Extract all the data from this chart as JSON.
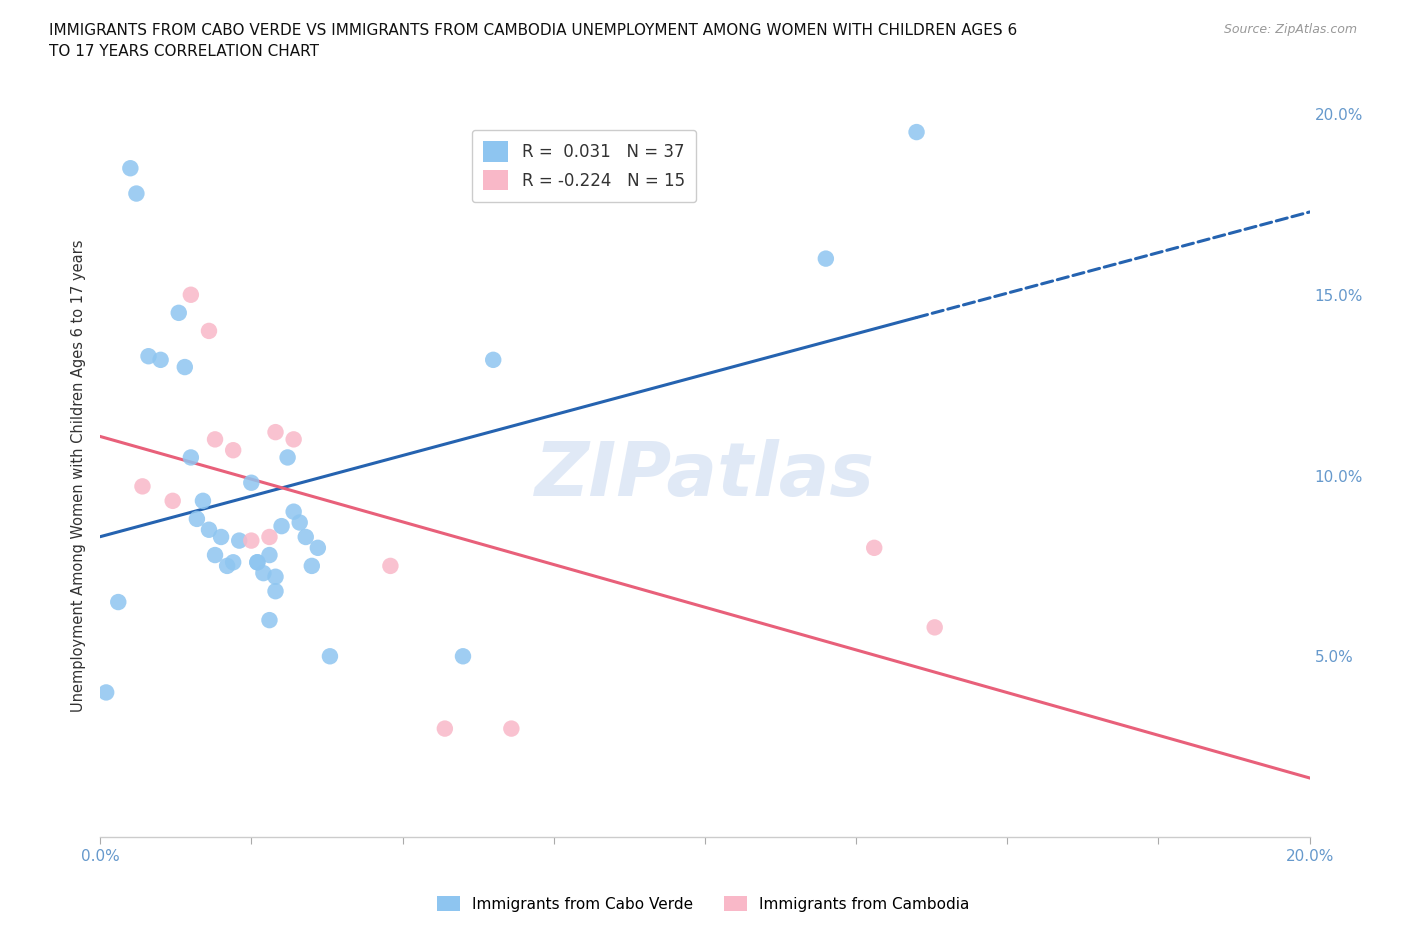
{
  "title": "IMMIGRANTS FROM CABO VERDE VS IMMIGRANTS FROM CAMBODIA UNEMPLOYMENT AMONG WOMEN WITH CHILDREN AGES 6\nTO 17 YEARS CORRELATION CHART",
  "source": "Source: ZipAtlas.com",
  "ylabel": "Unemployment Among Women with Children Ages 6 to 17 years",
  "xlim": [
    0.0,
    0.2
  ],
  "ylim": [
    0.0,
    0.2
  ],
  "xtick_positions": [
    0.0,
    0.025,
    0.05,
    0.075,
    0.1,
    0.125,
    0.15,
    0.175,
    0.2
  ],
  "xticklabels_show": {
    "0.0": "0.0%",
    "0.20": "20.0%"
  },
  "ytick_positions": [
    0.05,
    0.1,
    0.15,
    0.2
  ],
  "yticklabels": [
    "5.0%",
    "10.0%",
    "15.0%",
    "20.0%"
  ],
  "cabo_verde_x": [
    0.005,
    0.006,
    0.008,
    0.01,
    0.013,
    0.014,
    0.015,
    0.016,
    0.017,
    0.018,
    0.019,
    0.02,
    0.021,
    0.022,
    0.023,
    0.025,
    0.026,
    0.026,
    0.027,
    0.028,
    0.028,
    0.029,
    0.029,
    0.03,
    0.031,
    0.032,
    0.033,
    0.034,
    0.035,
    0.036,
    0.038,
    0.06,
    0.065,
    0.12,
    0.135,
    0.001,
    0.003
  ],
  "cabo_verde_y": [
    0.185,
    0.178,
    0.133,
    0.132,
    0.145,
    0.13,
    0.105,
    0.088,
    0.093,
    0.085,
    0.078,
    0.083,
    0.075,
    0.076,
    0.082,
    0.098,
    0.076,
    0.076,
    0.073,
    0.06,
    0.078,
    0.068,
    0.072,
    0.086,
    0.105,
    0.09,
    0.087,
    0.083,
    0.075,
    0.08,
    0.05,
    0.05,
    0.132,
    0.16,
    0.195,
    0.04,
    0.065
  ],
  "cambodia_x": [
    0.007,
    0.012,
    0.015,
    0.018,
    0.019,
    0.022,
    0.025,
    0.028,
    0.029,
    0.032,
    0.048,
    0.057,
    0.068,
    0.128,
    0.138
  ],
  "cambodia_y": [
    0.097,
    0.093,
    0.15,
    0.14,
    0.11,
    0.107,
    0.082,
    0.083,
    0.112,
    0.11,
    0.075,
    0.03,
    0.03,
    0.08,
    0.058
  ],
  "cabo_verde_color": "#8EC5F0",
  "cambodia_color": "#F9B8C8",
  "cabo_verde_line_color": "#2563B0",
  "cambodia_line_color": "#E8607A",
  "R_cabo": 0.031,
  "N_cabo": 37,
  "R_camb": -0.224,
  "N_camb": 15,
  "watermark": "ZIPatlas",
  "watermark_color": "#C8D8F0",
  "grid_color": "#CCCCCC",
  "tick_color": "#6699CC"
}
